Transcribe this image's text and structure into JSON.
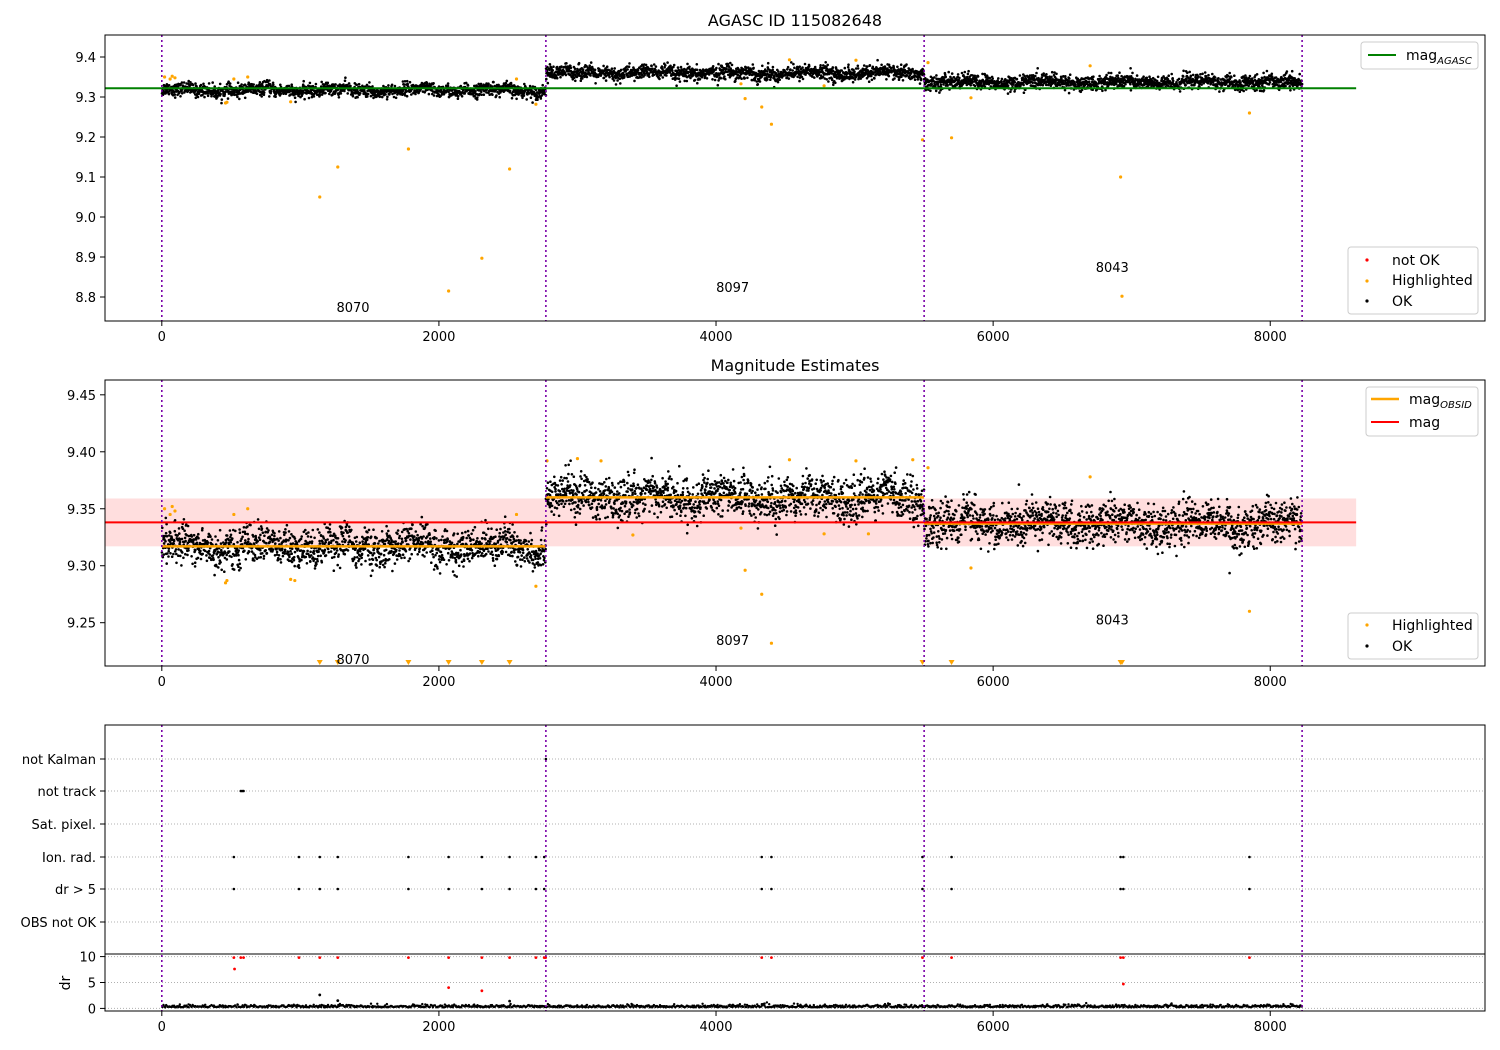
{
  "chart_data": [
    {
      "type": "scatter",
      "title": "AGASC ID 115082648",
      "xlabel": "",
      "ylabel": "",
      "xlim": [
        -410,
        9550
      ],
      "ylim": [
        8.74,
        9.455
      ],
      "x_ticks": [
        0,
        2000,
        4000,
        6000,
        8000
      ],
      "y_ticks": [
        8.8,
        8.9,
        9.0,
        9.1,
        9.2,
        9.3,
        9.4
      ],
      "grid": false,
      "obsid_boundaries": [
        0,
        2772,
        5502,
        8230
      ],
      "obsid_labels": [
        {
          "text": "8070",
          "x": 1380,
          "y": 8.775
        },
        {
          "text": "8097",
          "x": 4120,
          "y": 8.825
        },
        {
          "text": "8043",
          "x": 6860,
          "y": 8.875
        }
      ],
      "reference_lines": [
        {
          "name": "mag_AGASC",
          "value": 9.322,
          "x_range": [
            -410,
            8620
          ],
          "color": "#008000"
        }
      ],
      "ok_segments": [
        {
          "x_range": [
            0,
            2772
          ],
          "mean": 9.317,
          "spread": 0.008
        },
        {
          "x_range": [
            2772,
            5502
          ],
          "mean": 9.36,
          "spread": 0.009
        },
        {
          "x_range": [
            5502,
            8230
          ],
          "mean": 9.337,
          "spread": 0.009
        }
      ],
      "highlighted_points": [
        [
          20,
          9.35
        ],
        [
          60,
          9.345
        ],
        [
          75,
          9.352
        ],
        [
          95,
          9.348
        ],
        [
          460,
          9.285
        ],
        [
          470,
          9.287
        ],
        [
          520,
          9.345
        ],
        [
          620,
          9.35
        ],
        [
          930,
          9.288
        ],
        [
          1140,
          9.05
        ],
        [
          1270,
          9.125
        ],
        [
          1780,
          9.17
        ],
        [
          2070,
          8.815
        ],
        [
          2310,
          8.897
        ],
        [
          2510,
          9.12
        ],
        [
          2560,
          9.345
        ],
        [
          2700,
          9.282
        ],
        [
          4180,
          9.333
        ],
        [
          4210,
          9.296
        ],
        [
          4330,
          9.275
        ],
        [
          4400,
          9.232
        ],
        [
          4530,
          9.393
        ],
        [
          4780,
          9.328
        ],
        [
          5010,
          9.392
        ],
        [
          5490,
          9.193
        ],
        [
          5530,
          9.386
        ],
        [
          5700,
          9.198
        ],
        [
          5840,
          9.298
        ],
        [
          6700,
          9.378
        ],
        [
          6920,
          9.1
        ],
        [
          6930,
          8.802
        ],
        [
          7850,
          9.26
        ]
      ],
      "not_ok_points": [],
      "legend": {
        "top-right": [
          "mag_AGASC"
        ],
        "bottom-right": [
          "not OK",
          "Highlighted",
          "OK"
        ]
      },
      "series_colors": {
        "ok": "#000000",
        "highlighted": "#ffa500",
        "not_ok": "#ff0000"
      }
    },
    {
      "type": "scatter",
      "title": "Magnitude Estimates",
      "xlabel": "",
      "ylabel": "",
      "xlim": [
        -410,
        9550
      ],
      "ylim": [
        9.212,
        9.463
      ],
      "x_ticks": [
        0,
        2000,
        4000,
        6000,
        8000
      ],
      "y_ticks": [
        9.25,
        9.3,
        9.35,
        9.4,
        9.45
      ],
      "grid": false,
      "obsid_boundaries": [
        0,
        2772,
        5502,
        8230
      ],
      "obsid_labels": [
        {
          "text": "8070",
          "x": 1380,
          "y": 9.218
        },
        {
          "text": "8097",
          "x": 4120,
          "y": 9.235
        },
        {
          "text": "8043",
          "x": 6860,
          "y": 9.253
        }
      ],
      "mag": {
        "value": 9.338,
        "band": [
          9.317,
          9.359
        ],
        "x_range": [
          -410,
          8620
        ],
        "color": "#ff0000"
      },
      "mag_OBSID": [
        {
          "x_range": [
            0,
            2772
          ],
          "value": 9.317
        },
        {
          "x_range": [
            2772,
            5502
          ],
          "value": 9.36
        },
        {
          "x_range": [
            5502,
            8230
          ],
          "value": 9.337
        }
      ],
      "ok_segments": [
        {
          "x_range": [
            0,
            2772
          ],
          "mean": 9.317,
          "spread": 0.008
        },
        {
          "x_range": [
            2772,
            5502
          ],
          "mean": 9.36,
          "spread": 0.009
        },
        {
          "x_range": [
            5502,
            8230
          ],
          "mean": 9.337,
          "spread": 0.009
        }
      ],
      "highlighted_points": [
        [
          20,
          9.35
        ],
        [
          60,
          9.345
        ],
        [
          75,
          9.352
        ],
        [
          95,
          9.348
        ],
        [
          460,
          9.285
        ],
        [
          470,
          9.287
        ],
        [
          520,
          9.345
        ],
        [
          620,
          9.35
        ],
        [
          930,
          9.288
        ],
        [
          960,
          9.287
        ],
        [
          2560,
          9.345
        ],
        [
          2700,
          9.282
        ],
        [
          2780,
          9.392
        ],
        [
          3000,
          9.394
        ],
        [
          3170,
          9.392
        ],
        [
          3400,
          9.327
        ],
        [
          4180,
          9.333
        ],
        [
          4210,
          9.296
        ],
        [
          4330,
          9.275
        ],
        [
          4400,
          9.232
        ],
        [
          4530,
          9.393
        ],
        [
          4780,
          9.328
        ],
        [
          5010,
          9.392
        ],
        [
          5100,
          9.328
        ],
        [
          5420,
          9.393
        ],
        [
          5530,
          9.386
        ],
        [
          5840,
          9.298
        ],
        [
          6700,
          9.378
        ],
        [
          7850,
          9.26
        ]
      ],
      "clipped_points_x": [
        1140,
        1270,
        1780,
        2070,
        2310,
        2510,
        5490,
        5700,
        6920,
        6930
      ],
      "legend": {
        "top-right": [
          "mag_OBSID",
          "mag"
        ],
        "bottom-right": [
          "Highlighted",
          "OK"
        ]
      }
    },
    {
      "type": "scatter",
      "title": "",
      "xlim": [
        -410,
        9550
      ],
      "x_ticks": [
        0,
        2000,
        4000,
        6000,
        8000
      ],
      "flag_rows": [
        "not Kalman",
        "not track",
        "Sat. pixel.",
        "Ion. rad.",
        "dr > 5",
        "OBS not OK"
      ],
      "flags": {
        "not Kalman": [
          2772
        ],
        "not track": [
          570,
          580,
          590
        ],
        "Sat. pixel.": [],
        "Ion. rad.": [
          520,
          990,
          1140,
          1270,
          1780,
          2070,
          2310,
          2510,
          2700,
          2760,
          4330,
          4400,
          5490,
          5700,
          6920,
          6940,
          7850
        ],
        "dr > 5": [
          520,
          990,
          1140,
          1270,
          1780,
          2070,
          2310,
          2510,
          2700,
          2760,
          4330,
          4400,
          5490,
          5700,
          6920,
          6940,
          7850
        ],
        "OBS not OK": []
      },
      "dr_panel": {
        "ylabel": "dr",
        "ylim": [
          -0.5,
          10.5
        ],
        "y_ticks": [
          0,
          5,
          10
        ],
        "baseline": 0.2,
        "high_points": [
          [
            520,
            9.8
          ],
          [
            525,
            7.6
          ],
          [
            570,
            9.8
          ],
          [
            590,
            9.8
          ],
          [
            990,
            9.8
          ],
          [
            1140,
            9.8
          ],
          [
            1140,
            2.6
          ],
          [
            1270,
            9.8
          ],
          [
            1270,
            1.5
          ],
          [
            1780,
            9.8
          ],
          [
            2070,
            9.8
          ],
          [
            2070,
            4.0
          ],
          [
            2310,
            9.8
          ],
          [
            2310,
            3.4
          ],
          [
            2510,
            9.8
          ],
          [
            2510,
            1.4
          ],
          [
            2700,
            9.8
          ],
          [
            2760,
            9.8
          ],
          [
            2770,
            9.8
          ],
          [
            4330,
            9.8
          ],
          [
            4400,
            9.8
          ],
          [
            5490,
            9.8
          ],
          [
            5700,
            9.8
          ],
          [
            6920,
            9.8
          ],
          [
            6940,
            9.8
          ],
          [
            6940,
            4.7
          ],
          [
            7850,
            9.8
          ]
        ]
      }
    }
  ]
}
